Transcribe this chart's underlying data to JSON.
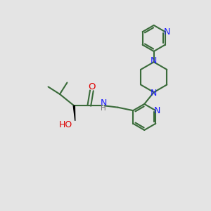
{
  "bg_color": "#e4e4e4",
  "bond_color": "#3a6b3a",
  "n_color": "#1a1aff",
  "o_color": "#dd0000",
  "h_color": "#777777",
  "black": "#000000",
  "line_width": 1.5,
  "font_size": 8.5,
  "fig_size": [
    3.0,
    3.0
  ],
  "dpi": 100,
  "xlim": [
    0,
    10
  ],
  "ylim": [
    0,
    10
  ]
}
